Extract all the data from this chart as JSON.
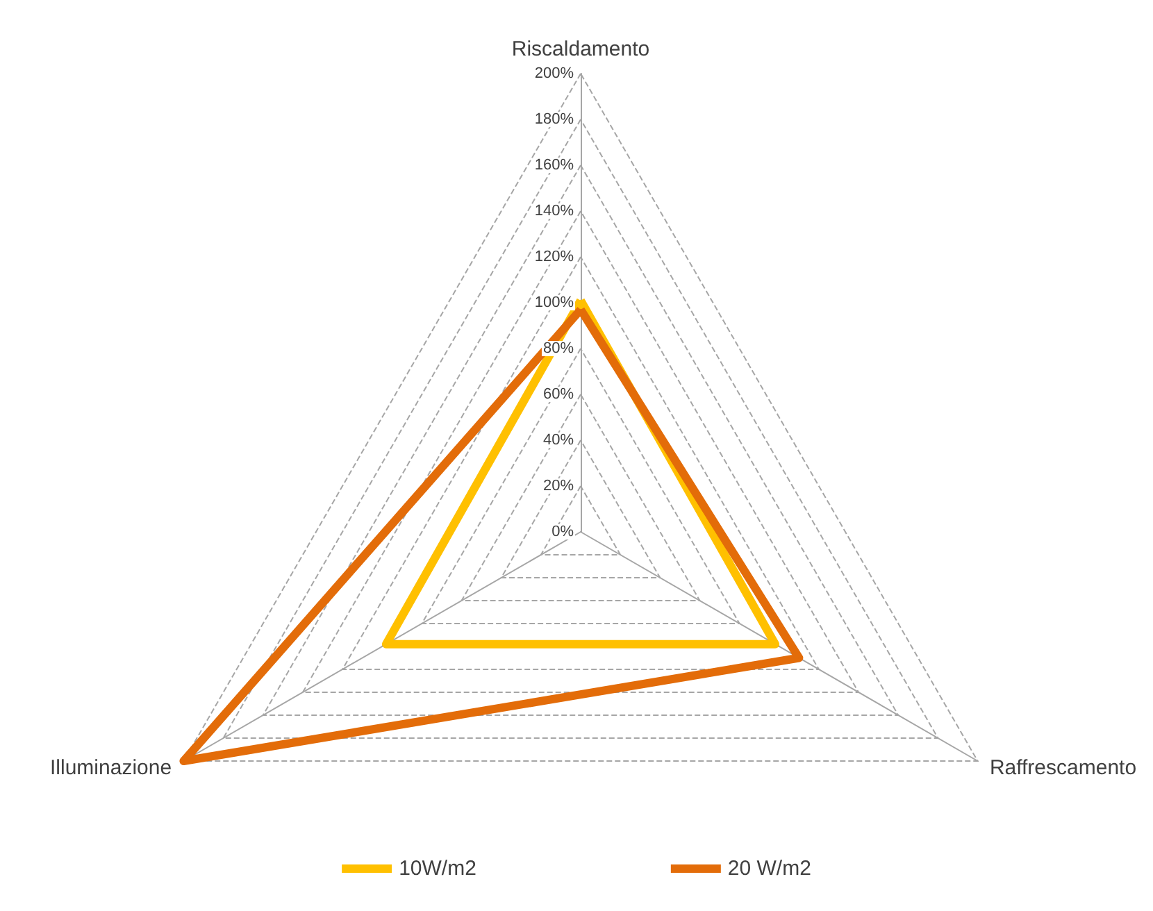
{
  "chart_data": {
    "type": "radar",
    "categories": [
      "Riscaldamento",
      "Raffrescamento",
      "Illuminazione"
    ],
    "series": [
      {
        "name": "10W/m2",
        "color": "#ffc000",
        "values": [
          101,
          98,
          98
        ]
      },
      {
        "name": "20 W/m2",
        "color": "#e36c09",
        "values": [
          97,
          110,
          200
        ]
      }
    ],
    "ylim": [
      0,
      200
    ],
    "yticks": [
      {
        "value": 0,
        "label": "0%"
      },
      {
        "value": 20,
        "label": "20%"
      },
      {
        "value": 40,
        "label": "40%"
      },
      {
        "value": 60,
        "label": "60%"
      },
      {
        "value": 80,
        "label": "80%"
      },
      {
        "value": 100,
        "label": "100%"
      },
      {
        "value": 120,
        "label": "120%"
      },
      {
        "value": 140,
        "label": "140%"
      },
      {
        "value": 160,
        "label": "160%"
      },
      {
        "value": 180,
        "label": "180%"
      },
      {
        "value": 200,
        "label": "200%"
      }
    ],
    "grid": true,
    "legend": "bottom",
    "marker": "none",
    "line_style": "solid"
  }
}
